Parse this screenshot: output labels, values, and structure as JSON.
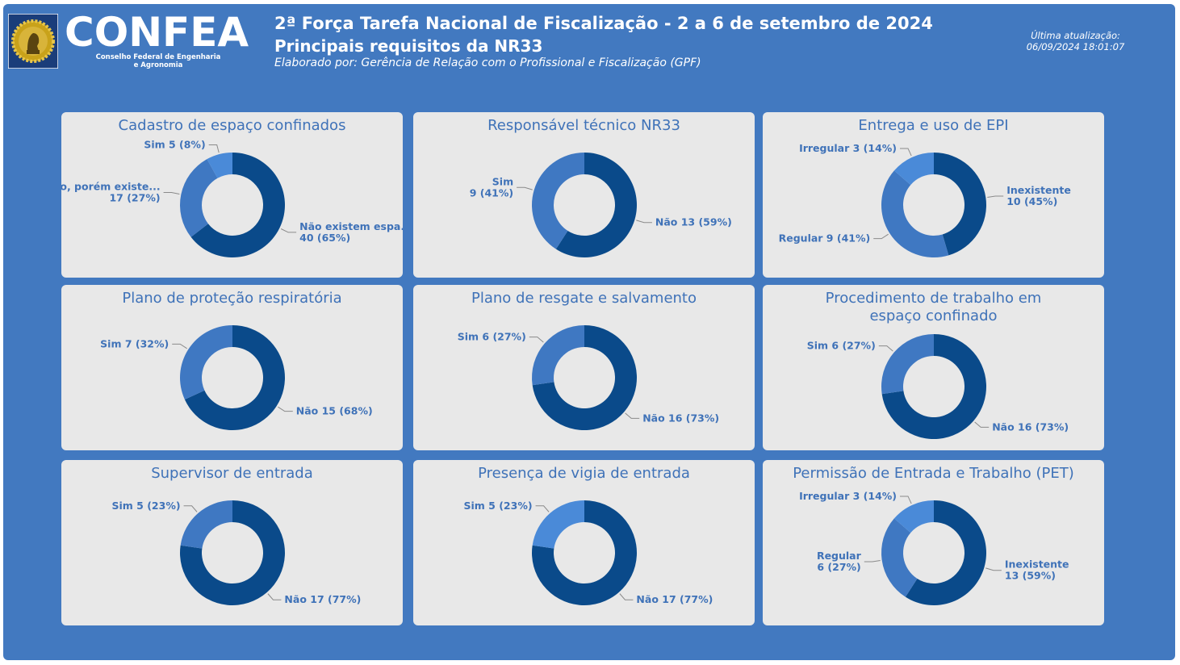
{
  "header": {
    "logo_text": "CONFEA",
    "logo_subtitle_line1": "Conselho Federal de Engenharia",
    "logo_subtitle_line2": "e Agronomia",
    "title": "2ª Força Tarefa Nacional de Fiscalização - 2 a 6 de setembro de 2024",
    "subtitle": "Principais requisitos da NR33",
    "author": "Elaborado por: Gerência de Relação com o Profissional e Fiscalização (GPF)",
    "update_label": "Última atualização:",
    "update_value": "06/09/2024 18:01:07"
  },
  "colors": {
    "background": "#4279c0",
    "card": "#e8e8e8",
    "dark_blue": "#0a4a8a",
    "mid_blue": "#3f78c2",
    "light_blue": "#4a8ad8",
    "label_blue": "#3f72b8"
  },
  "chart_data": [
    {
      "type": "pie",
      "title": "Cadastro de espaço confinados",
      "slices": [
        {
          "label_lines": [
            "Não existem espa...",
            "40 (65%)"
          ],
          "value": 40,
          "color": "#0a4a8a"
        },
        {
          "label_lines": [
            "Não, porém existe...",
            "17 (27%)"
          ],
          "value": 17,
          "color": "#3f78c2"
        },
        {
          "label_lines": [
            "Sim 5 (8%)"
          ],
          "value": 5,
          "color": "#4a8ad8"
        }
      ]
    },
    {
      "type": "pie",
      "title": "Responsável técnico NR33",
      "slices": [
        {
          "label_lines": [
            "Não 13 (59%)"
          ],
          "value": 13,
          "color": "#0a4a8a"
        },
        {
          "label_lines": [
            "Sim",
            "9 (41%)"
          ],
          "value": 9,
          "color": "#3f78c2"
        }
      ]
    },
    {
      "type": "pie",
      "title": "Entrega e uso de EPI",
      "slices": [
        {
          "label_lines": [
            "Inexistente",
            "10 (45%)"
          ],
          "value": 10,
          "color": "#0a4a8a"
        },
        {
          "label_lines": [
            "Regular 9 (41%)"
          ],
          "value": 9,
          "color": "#3f78c2"
        },
        {
          "label_lines": [
            "Irregular 3 (14%)"
          ],
          "value": 3,
          "color": "#4a8ad8"
        }
      ]
    },
    {
      "type": "pie",
      "title": "Plano de proteção respiratória",
      "slices": [
        {
          "label_lines": [
            "Não 15 (68%)"
          ],
          "value": 15,
          "color": "#0a4a8a"
        },
        {
          "label_lines": [
            "Sim 7 (32%)"
          ],
          "value": 7,
          "color": "#3f78c2"
        }
      ]
    },
    {
      "type": "pie",
      "title": "Plano de resgate e salvamento",
      "slices": [
        {
          "label_lines": [
            "Não 16 (73%)"
          ],
          "value": 16,
          "color": "#0a4a8a"
        },
        {
          "label_lines": [
            "Sim 6 (27%)"
          ],
          "value": 6,
          "color": "#3f78c2"
        }
      ]
    },
    {
      "type": "pie",
      "title": "Procedimento de trabalho em espaço confinado",
      "slices": [
        {
          "label_lines": [
            "Não 16 (73%)"
          ],
          "value": 16,
          "color": "#0a4a8a"
        },
        {
          "label_lines": [
            "Sim 6 (27%)"
          ],
          "value": 6,
          "color": "#3f78c2"
        }
      ]
    },
    {
      "type": "pie",
      "title": "Supervisor de entrada",
      "slices": [
        {
          "label_lines": [
            "Não 17 (77%)"
          ],
          "value": 17,
          "color": "#0a4a8a"
        },
        {
          "label_lines": [
            "Sim 5 (23%)"
          ],
          "value": 5,
          "color": "#3f78c2"
        }
      ]
    },
    {
      "type": "pie",
      "title": "Presença de vigia de entrada",
      "slices": [
        {
          "label_lines": [
            "Não 17 (77%)"
          ],
          "value": 17,
          "color": "#0a4a8a"
        },
        {
          "label_lines": [
            "Sim 5 (23%)"
          ],
          "value": 5,
          "color": "#4a8ad8"
        }
      ]
    },
    {
      "type": "pie",
      "title": "Permissão de Entrada e Trabalho (PET)",
      "slices": [
        {
          "label_lines": [
            "Inexistente",
            "13 (59%)"
          ],
          "value": 13,
          "color": "#0a4a8a"
        },
        {
          "label_lines": [
            "Regular",
            "6 (27%)"
          ],
          "value": 6,
          "color": "#3f78c2"
        },
        {
          "label_lines": [
            "Irregular 3 (14%)"
          ],
          "value": 3,
          "color": "#4a8ad8"
        }
      ]
    }
  ]
}
